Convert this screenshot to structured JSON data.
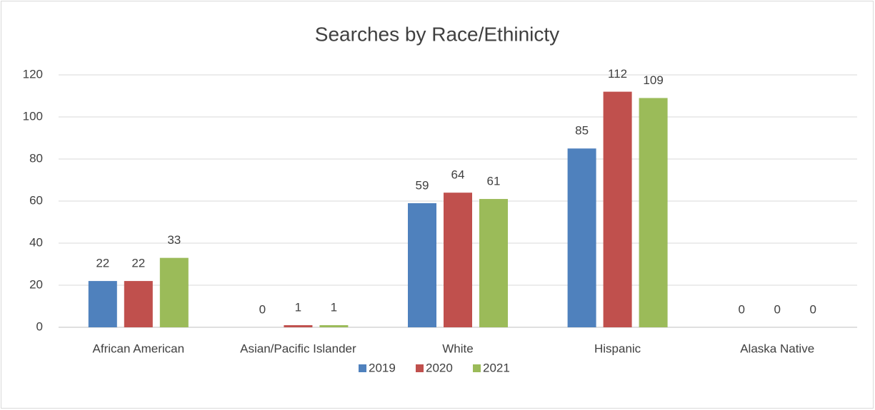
{
  "chart_data": {
    "type": "bar",
    "title": "Searches by Race/Ethinicty",
    "categories": [
      "African American",
      "Asian/Pacific Islander",
      "White",
      "Hispanic",
      "Alaska Native"
    ],
    "series": [
      {
        "name": "2019",
        "color": "#4f81bd",
        "values": [
          22,
          0,
          59,
          85,
          0
        ]
      },
      {
        "name": "2020",
        "color": "#c0504d",
        "values": [
          22,
          1,
          64,
          112,
          0
        ]
      },
      {
        "name": "2021",
        "color": "#9bbb59",
        "values": [
          33,
          1,
          61,
          109,
          0
        ]
      }
    ],
    "ylim": [
      0,
      120
    ],
    "yticks": [
      0,
      20,
      40,
      60,
      80,
      100,
      120
    ],
    "grid": true,
    "legend": "bottom"
  }
}
